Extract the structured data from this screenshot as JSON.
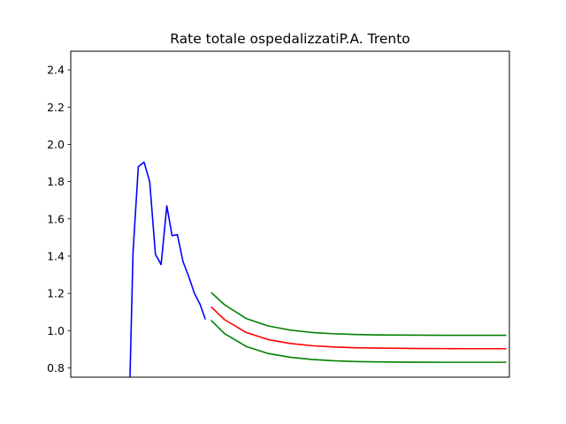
{
  "chart_data": {
    "type": "line",
    "title": "Rate totale ospedalizzatiP.A. Trento",
    "xlabel": "",
    "ylabel": "",
    "xlim": [
      0,
      100
    ],
    "ylim": [
      0.75,
      2.5
    ],
    "yticks": [
      0.8,
      1.0,
      1.2,
      1.4,
      1.6,
      1.8,
      2.0,
      2.2,
      2.4
    ],
    "grid": false,
    "x_tick_labels_visible": false,
    "series": [
      {
        "color": "#0000ff",
        "x": [
          13.5,
          14.2,
          15.4,
          16.7,
          18.0,
          19.3,
          20.6,
          21.9,
          23.1,
          24.3,
          25.6,
          26.9,
          28.2,
          29.5,
          30.7
        ],
        "y": [
          0.75,
          1.42,
          1.88,
          1.905,
          1.8,
          1.41,
          1.355,
          1.67,
          1.51,
          1.515,
          1.37,
          1.29,
          1.2,
          1.14,
          1.06
        ]
      },
      {
        "color": "#ff0000",
        "x": [
          32,
          35,
          40,
          45,
          50,
          55,
          60,
          65,
          70,
          75,
          80,
          85,
          90,
          95,
          99.3
        ],
        "y": [
          1.128,
          1.06,
          0.99,
          0.952,
          0.931,
          0.919,
          0.912,
          0.908,
          0.906,
          0.905,
          0.904,
          0.9035,
          0.903,
          0.903,
          0.903
        ]
      },
      {
        "color": "#008000",
        "x": [
          32,
          35,
          40,
          45,
          50,
          55,
          60,
          65,
          70,
          75,
          80,
          85,
          90,
          95,
          99.3
        ],
        "y": [
          1.205,
          1.14,
          1.065,
          1.025,
          1.003,
          0.99,
          0.983,
          0.979,
          0.977,
          0.976,
          0.9755,
          0.975,
          0.975,
          0.975,
          0.975
        ]
      },
      {
        "color": "#008000",
        "x": [
          32,
          35,
          40,
          45,
          50,
          55,
          60,
          65,
          70,
          75,
          80,
          85,
          90,
          95,
          99.3
        ],
        "y": [
          1.055,
          0.985,
          0.915,
          0.877,
          0.857,
          0.845,
          0.838,
          0.834,
          0.832,
          0.831,
          0.8305,
          0.83,
          0.83,
          0.83,
          0.83
        ]
      }
    ]
  }
}
